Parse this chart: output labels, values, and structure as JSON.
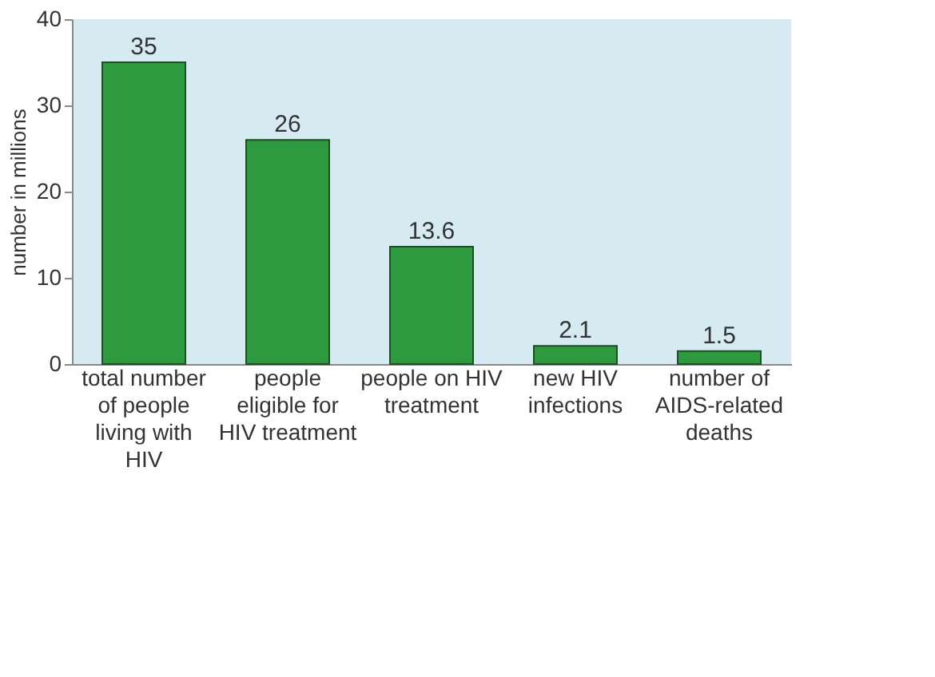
{
  "chart_data": {
    "type": "bar",
    "ylabel": "number in millions",
    "categories": [
      "total number of people living with HIV",
      "people eligible for HIV treatment",
      "people on HIV treatment",
      "new HIV infections",
      "number of AIDS-related deaths"
    ],
    "values": [
      35,
      26,
      13.6,
      2.1,
      1.5
    ],
    "color": "#2e9a3e",
    "ylim": [
      0,
      40
    ],
    "yticks": [
      0,
      10,
      20,
      30,
      40
    ],
    "grid": false,
    "data_labels": true
  }
}
